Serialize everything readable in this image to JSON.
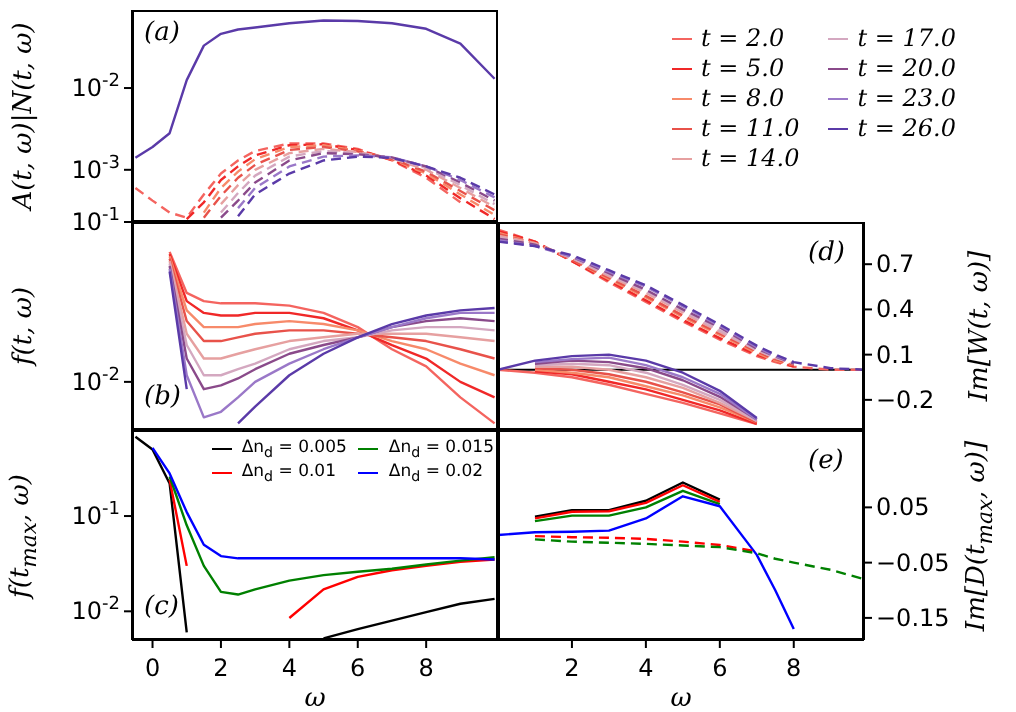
{
  "chart_data": [
    {
      "type": "line",
      "ylabel": "A(t, ω)|N(t, ω)",
      "annotations": [
        "(a)"
      ],
      "log": "y",
      "tick_labels": "y",
      "xlim": [
        -0.6,
        10.1
      ],
      "xticks": [
        0,
        2,
        4,
        6,
        8
      ],
      "ylim": [
        0.00023,
        0.09
      ],
      "yticks": [
        {
          "value": 0.01,
          "label": "10$^{-2}$"
        },
        {
          "value": 0.001,
          "label": "10$^{-3}$"
        }
      ],
      "x": [
        -0.5,
        0,
        0.5,
        1,
        1.5,
        2,
        2.5,
        3,
        4,
        5,
        6,
        7,
        8,
        9,
        10
      ],
      "series": [
        {
          "color": "#5a3aa8",
          "values": [
            0.0014,
            0.0019,
            0.0028,
            0.0125,
            0.033,
            0.046,
            0.052,
            0.055,
            0.062,
            0.067,
            0.066,
            0.062,
            0.053,
            0.035,
            0.013
          ]
        },
        {
          "color": "#f4645f",
          "line_style": "dashed",
          "values": [
            0.0006,
            0.00042,
            0.0003,
            0.00026,
            0.0005,
            0.0009,
            0.0013,
            0.0017,
            0.0021,
            0.0021,
            0.0018,
            0.0013,
            0.0008,
            0.0004,
            null
          ]
        },
        {
          "color": "#f02828",
          "line_style": "dashed",
          "values": [
            null,
            null,
            null,
            0.00025,
            0.0004,
            0.00075,
            0.0011,
            0.0015,
            0.002,
            0.00205,
            0.00175,
            0.00132,
            0.00085,
            0.00045,
            0.00025
          ]
        },
        {
          "color": "#f78a6a",
          "line_style": "dashed",
          "values": [
            null,
            null,
            null,
            null,
            0.0003,
            0.0006,
            0.00095,
            0.00135,
            0.0019,
            0.002,
            0.0017,
            0.00134,
            0.0009,
            0.0005,
            0.00028
          ]
        },
        {
          "color": "#e8524a",
          "line_style": "dashed",
          "values": [
            null,
            null,
            null,
            null,
            0.00026,
            0.00048,
            0.0008,
            0.00115,
            0.00175,
            0.0019,
            0.00168,
            0.00136,
            0.00095,
            0.00055,
            0.00032
          ]
        },
        {
          "color": "#e6a0a0",
          "line_style": "dashed",
          "values": [
            null,
            null,
            null,
            null,
            null,
            0.00038,
            0.00065,
            0.001,
            0.0016,
            0.0018,
            0.00165,
            0.00138,
            0.001,
            0.0006,
            0.00035
          ]
        },
        {
          "color": "#d4a8c0",
          "line_style": "dashed",
          "values": [
            null,
            null,
            null,
            null,
            null,
            0.0003,
            0.00052,
            0.00085,
            0.00145,
            0.0017,
            0.0016,
            0.0014,
            0.00105,
            0.00065,
            0.00038
          ]
        },
        {
          "color": "#8a4a8a",
          "line_style": "dashed",
          "values": [
            null,
            null,
            null,
            null,
            null,
            0.00026,
            0.00042,
            0.0007,
            0.0013,
            0.0016,
            0.00155,
            0.00142,
            0.0011,
            0.0007,
            0.00042
          ]
        },
        {
          "color": "#9a78c8",
          "line_style": "dashed",
          "values": [
            null,
            null,
            null,
            null,
            null,
            null,
            0.00034,
            0.0006,
            0.0011,
            0.00145,
            0.0015,
            0.00142,
            0.0011,
            0.00075,
            0.00046
          ]
        },
        {
          "color": "#5a3aa8",
          "line_style": "dashed",
          "values": [
            null,
            null,
            null,
            null,
            null,
            null,
            0.00027,
            0.0005,
            0.0009,
            0.0013,
            0.00145,
            0.0014,
            0.0011,
            0.0008,
            0.0005
          ]
        }
      ]
    },
    {
      "type": "line",
      "ylabel": "f(t, ω)",
      "annotations": [
        "(b)"
      ],
      "legend": "top right",
      "log": "y",
      "tick_labels": "y",
      "xlim": [
        -0.6,
        10.1
      ],
      "xticks": [
        0,
        2,
        4,
        6,
        8
      ],
      "ylim": [
        0.005,
        0.1
      ],
      "yticks": [
        {
          "value": 0.1,
          "label": "10$^{-1}$"
        },
        {
          "value": 0.01,
          "label": "10$^{-2}$"
        }
      ],
      "x": [
        0.5,
        1,
        1.5,
        2,
        2.5,
        3,
        4,
        5,
        6,
        7,
        8,
        9,
        10
      ],
      "series": [
        {
          "name": "t = 2.0",
          "color": "#f4645f",
          "values": [
            0.065,
            0.036,
            0.032,
            0.031,
            0.031,
            0.031,
            0.03,
            0.027,
            0.022,
            0.016,
            0.0125,
            0.008,
            0.0055
          ]
        },
        {
          "name": "t = 5.0",
          "color": "#f02828",
          "values": [
            0.063,
            0.032,
            0.027,
            0.026,
            0.026,
            0.027,
            0.027,
            0.025,
            0.021,
            0.017,
            0.014,
            0.01,
            0.008
          ]
        },
        {
          "name": "t = 8.0",
          "color": "#f78a6a",
          "values": [
            0.061,
            0.028,
            0.022,
            0.022,
            0.022,
            0.023,
            0.024,
            0.023,
            0.021,
            0.018,
            0.016,
            0.013,
            0.011
          ]
        },
        {
          "name": "t = 11.0",
          "color": "#e8524a",
          "values": [
            0.059,
            0.024,
            0.018,
            0.018,
            0.019,
            0.02,
            0.021,
            0.021,
            0.02,
            0.019,
            0.018,
            0.016,
            0.014
          ]
        },
        {
          "name": "t = 14.0",
          "color": "#e6a0a0",
          "values": [
            0.057,
            0.02,
            0.014,
            0.014,
            0.015,
            0.016,
            0.018,
            0.019,
            0.02,
            0.02,
            0.02,
            0.019,
            0.018
          ]
        },
        {
          "name": "t = 17.0",
          "color": "#d4a8c0",
          "values": [
            0.055,
            0.017,
            0.011,
            0.011,
            0.012,
            0.013,
            0.016,
            0.018,
            0.019,
            0.021,
            0.022,
            0.022,
            0.021
          ]
        },
        {
          "name": "t = 20.0",
          "color": "#8a4a8a",
          "values": [
            0.053,
            0.014,
            0.009,
            0.0095,
            0.0105,
            0.012,
            0.015,
            0.017,
            0.019,
            0.022,
            0.024,
            0.025,
            0.024
          ]
        },
        {
          "name": "t = 23.0",
          "color": "#9a78c8",
          "values": [
            0.051,
            0.011,
            0.006,
            0.0065,
            0.008,
            0.01,
            0.013,
            0.016,
            0.019,
            0.022,
            0.025,
            0.027,
            0.027
          ]
        },
        {
          "name": "t = 26.0",
          "color": "#5a3aa8",
          "values": [
            0.049,
            0.009,
            null,
            null,
            0.0055,
            0.007,
            0.011,
            0.015,
            0.019,
            0.023,
            0.026,
            0.028,
            0.029
          ]
        }
      ]
    },
    {
      "type": "line",
      "ylabel": "Im[W(t, ω)]",
      "annotations": [
        "(d)"
      ],
      "tick_labels": "y",
      "xlim": [
        0,
        9.9
      ],
      "xticks": [
        2,
        4,
        6,
        8
      ],
      "ylim": [
        -0.4,
        0.98
      ],
      "yticks": [
        0.7,
        0.4,
        0.1,
        {
          "value": -0.2,
          "label": "−0.2"
        }
      ],
      "ref_lines": [
        {
          "axis": "y",
          "value": 0,
          "color": "#000000"
        }
      ],
      "x": [
        0,
        1,
        2,
        3,
        4,
        5,
        6,
        7,
        7.5,
        8,
        9,
        9.9
      ],
      "series": [
        {
          "color": "#f4645f",
          "line_style": "dashed",
          "values": [
            0.93,
            0.85,
            0.72,
            0.58,
            0.45,
            0.32,
            0.2,
            0.09,
            0.05,
            0.02,
            0,
            0
          ]
        },
        {
          "color": "#f02828",
          "line_style": "dashed",
          "values": [
            0.92,
            0.85,
            0.72,
            0.59,
            0.46,
            0.33,
            0.21,
            0.1,
            0.06,
            0.02,
            null,
            null
          ]
        },
        {
          "color": "#f78a6a",
          "line_style": "dashed",
          "values": [
            0.91,
            0.84,
            0.73,
            0.6,
            0.48,
            0.35,
            0.23,
            0.11,
            0.06,
            0.03,
            null,
            null
          ]
        },
        {
          "color": "#e8524a",
          "line_style": "dashed",
          "values": [
            0.9,
            0.84,
            0.73,
            0.61,
            0.49,
            0.36,
            0.24,
            0.12,
            0.07,
            0.03,
            null,
            null
          ]
        },
        {
          "color": "#e6a0a0",
          "line_style": "dashed",
          "values": [
            0.89,
            0.84,
            0.74,
            0.62,
            0.51,
            0.38,
            0.25,
            0.13,
            0.08,
            0.04,
            null,
            null
          ]
        },
        {
          "color": "#d4a8c0",
          "line_style": "dashed",
          "values": [
            0.88,
            0.83,
            0.74,
            0.63,
            0.52,
            0.39,
            0.26,
            0.13,
            0.08,
            0.04,
            null,
            null
          ]
        },
        {
          "color": "#8a4a8a",
          "line_style": "dashed",
          "values": [
            0.87,
            0.83,
            0.75,
            0.64,
            0.53,
            0.4,
            0.28,
            0.14,
            0.09,
            0.04,
            null,
            null
          ]
        },
        {
          "color": "#9a78c8",
          "line_style": "dashed",
          "values": [
            0.86,
            0.82,
            0.75,
            0.65,
            0.55,
            0.42,
            0.29,
            0.15,
            0.09,
            0.05,
            null,
            null
          ]
        },
        {
          "color": "#5a3aa8",
          "line_style": "dashed",
          "values": [
            0.85,
            0.82,
            0.76,
            0.66,
            0.56,
            0.43,
            0.3,
            0.16,
            0.1,
            0.05,
            0.01,
            0
          ]
        },
        {
          "color": "#f4645f",
          "values": [
            0,
            -0.02,
            -0.05,
            -0.1,
            -0.16,
            -0.22,
            -0.29,
            -0.36,
            null,
            null,
            null,
            null
          ]
        },
        {
          "color": "#f02828",
          "values": [
            null,
            -0.01,
            -0.03,
            -0.08,
            -0.13,
            -0.2,
            -0.27,
            -0.36,
            null,
            null,
            null,
            null
          ]
        },
        {
          "color": "#f78a6a",
          "values": [
            null,
            0,
            -0.02,
            -0.05,
            -0.11,
            -0.17,
            -0.25,
            -0.35,
            null,
            null,
            null,
            null
          ]
        },
        {
          "color": "#e8524a",
          "values": [
            null,
            0.01,
            0,
            -0.03,
            -0.08,
            -0.15,
            -0.23,
            -0.35,
            null,
            null,
            null,
            null
          ]
        },
        {
          "color": "#e6a0a0",
          "values": [
            null,
            0.02,
            0.02,
            0,
            -0.05,
            -0.12,
            -0.22,
            -0.34,
            null,
            null,
            null,
            null
          ]
        },
        {
          "color": "#d4a8c0",
          "values": [
            null,
            0.03,
            0.04,
            0.03,
            -0.02,
            -0.1,
            -0.2,
            -0.34,
            null,
            null,
            null,
            null
          ]
        },
        {
          "color": "#8a4a8a",
          "values": [
            null,
            0.04,
            0.06,
            0.05,
            0.01,
            -0.07,
            -0.18,
            -0.33,
            null,
            null,
            null,
            null
          ]
        },
        {
          "color": "#9a78c8",
          "values": [
            null,
            0.05,
            0.07,
            0.08,
            0.03,
            -0.05,
            -0.16,
            -0.33,
            null,
            null,
            null,
            null
          ]
        },
        {
          "color": "#5a3aa8",
          "values": [
            0,
            0.06,
            0.09,
            0.1,
            0.06,
            -0.02,
            -0.14,
            -0.32,
            null,
            null,
            null,
            null
          ]
        }
      ]
    },
    {
      "type": "line",
      "xlabel": "ω",
      "ylabel": "f(t$_{max}$, ω)",
      "annotations": [
        "(c)"
      ],
      "legend": "top right",
      "log": "y",
      "xlim": [
        -0.6,
        10.1
      ],
      "xticks": [
        0,
        2,
        4,
        6,
        8
      ],
      "ylim": [
        0.005,
        0.8
      ],
      "yticks": [
        {
          "value": 0.1,
          "label": "10$^{-1}$"
        },
        {
          "value": 0.01,
          "label": "10$^{-2}$"
        }
      ],
      "x": [
        -0.5,
        0,
        0.5,
        1,
        1.5,
        2,
        2.5,
        3,
        4,
        5,
        6,
        7,
        8,
        9,
        10
      ],
      "series": [
        {
          "name": "Δn$_{d}$ = 0.005",
          "color": "#000000",
          "values": [
            0.68,
            0.5,
            0.22,
            0.006,
            null,
            null,
            null,
            null,
            null,
            0.0052,
            0.0065,
            0.008,
            0.0098,
            0.012,
            0.0135
          ]
        },
        {
          "name": "Δn$_{d}$ = 0.01",
          "color": "#ff0000",
          "values": [
            null,
            null,
            0.24,
            0.03,
            null,
            null,
            null,
            null,
            0.0085,
            0.017,
            0.023,
            0.027,
            0.03,
            0.033,
            0.035
          ]
        },
        {
          "name": "Δn$_{d}$ = 0.015",
          "color": "#008000",
          "values": [
            null,
            null,
            0.26,
            0.08,
            0.03,
            0.016,
            0.015,
            0.017,
            0.021,
            0.024,
            0.026,
            0.028,
            0.031,
            0.034,
            0.037
          ]
        },
        {
          "name": "Δn$_{d}$ = 0.02",
          "color": "#0000ff",
          "values": [
            null,
            0.52,
            0.28,
            0.11,
            0.05,
            0.038,
            0.036,
            0.036,
            0.036,
            0.036,
            0.036,
            0.036,
            0.036,
            0.036,
            0.035
          ]
        }
      ]
    },
    {
      "type": "line",
      "xlabel": "ω",
      "ylabel": "Im[D(t$_{max}$, ω)]",
      "annotations": [
        "(e)"
      ],
      "xlim": [
        0,
        9.9
      ],
      "xticks": [
        2,
        4,
        6,
        8
      ],
      "ylim": [
        -0.19,
        0.19
      ],
      "yticks": [
        0.05,
        {
          "value": -0.05,
          "label": "−0.05"
        },
        {
          "value": -0.15,
          "label": "−0.15"
        }
      ],
      "x": [
        0,
        1,
        2,
        3,
        4,
        5,
        6,
        7,
        7.5,
        8,
        9,
        9.9
      ],
      "series": [
        {
          "color": "#000000",
          "values": [
            null,
            0.033,
            0.045,
            0.045,
            0.062,
            0.095,
            0.064,
            null,
            null,
            null,
            null,
            null
          ]
        },
        {
          "color": "#ff0000",
          "values": [
            null,
            0.03,
            0.042,
            0.043,
            0.058,
            0.09,
            0.06,
            null,
            null,
            null,
            null,
            null
          ]
        },
        {
          "color": "#008000",
          "values": [
            null,
            0.025,
            0.035,
            0.035,
            0.05,
            0.08,
            0.056,
            null,
            null,
            null,
            null,
            null
          ]
        },
        {
          "color": "#0000ff",
          "values": [
            0,
            0.005,
            0.006,
            0.008,
            0.03,
            0.07,
            0.052,
            -0.036,
            -0.1,
            -0.17,
            null,
            null
          ]
        },
        {
          "color": "#ff0000",
          "line_style": "dashed",
          "values": [
            null,
            -0.002,
            -0.004,
            -0.005,
            -0.007,
            -0.012,
            -0.018,
            -0.03,
            null,
            null,
            null,
            null
          ]
        },
        {
          "color": "#008000",
          "line_style": "dashed",
          "values": [
            null,
            -0.008,
            -0.012,
            -0.014,
            -0.016,
            -0.019,
            -0.022,
            -0.033,
            -0.043,
            -0.05,
            -0.063,
            -0.08
          ]
        }
      ]
    }
  ]
}
